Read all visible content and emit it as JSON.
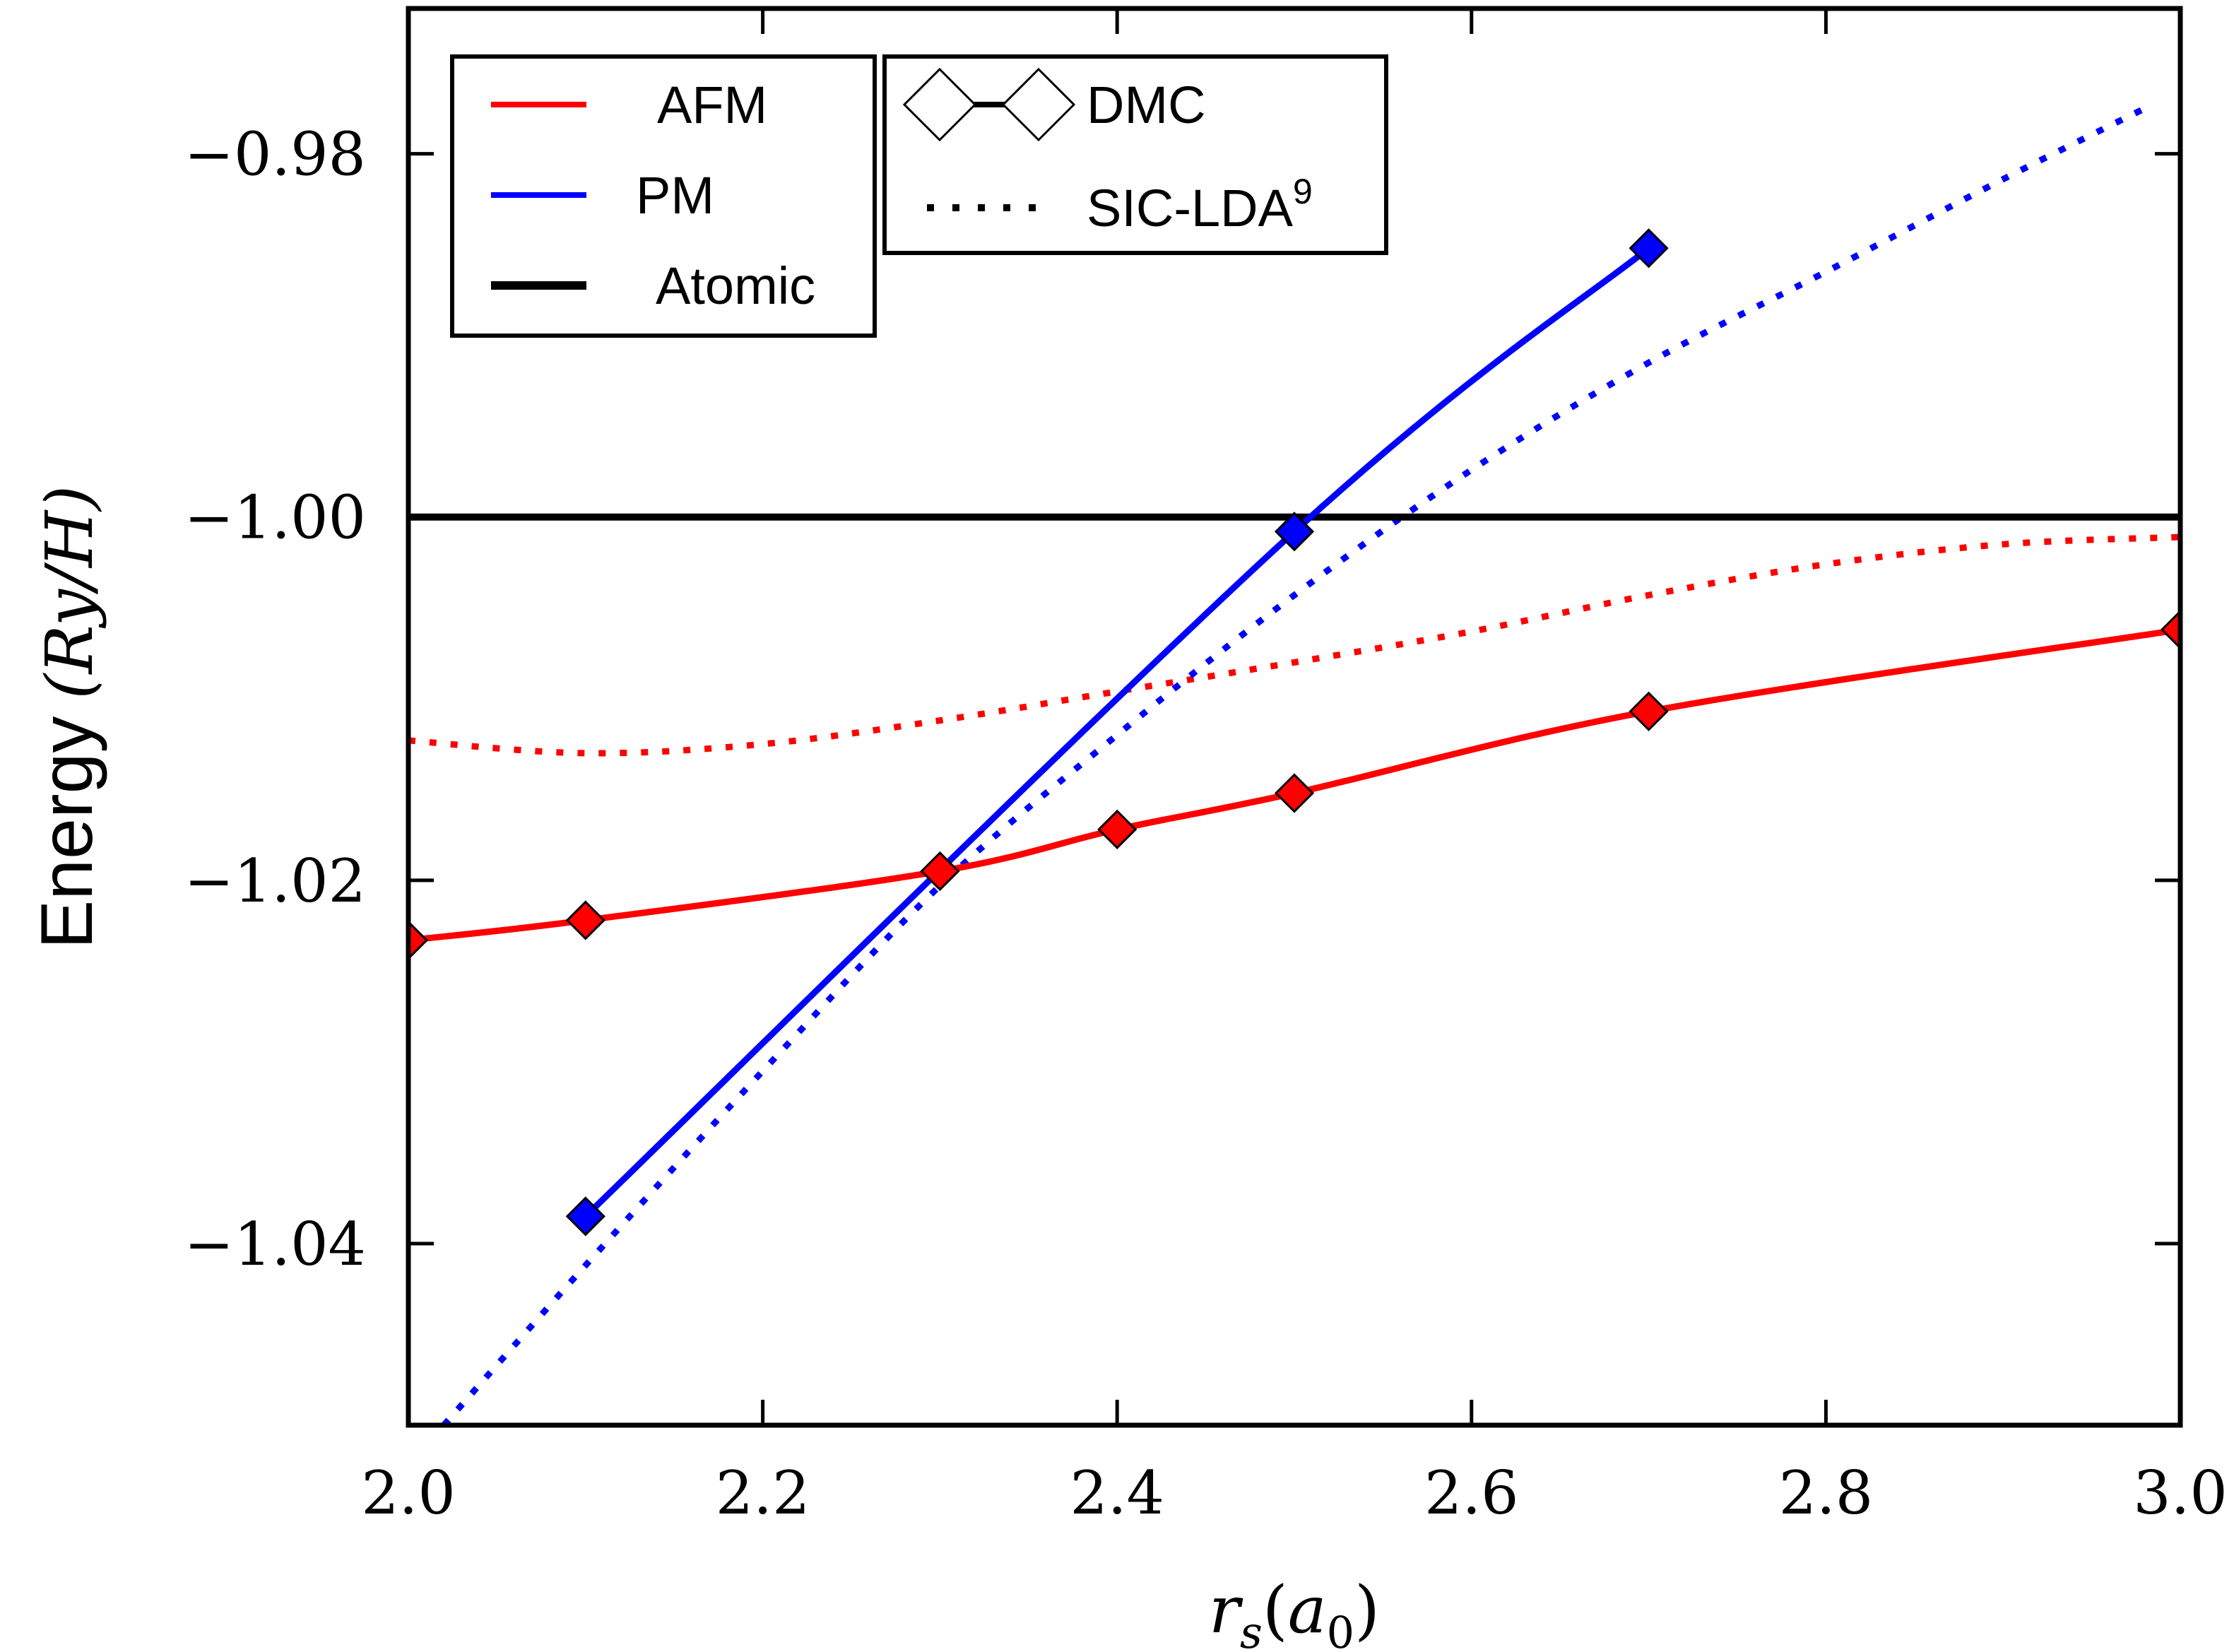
{
  "chart_data": {
    "type": "line",
    "title": "",
    "xlabel": "r_s(a_0)",
    "xlabel_display": {
      "base": "r",
      "sub": "s",
      "rest_open": "(",
      "arg": "a",
      "arg_sub": "0",
      "rest_close": ")"
    },
    "ylabel": "Energy (Ry/H)",
    "ylabel_display": {
      "word": "Energy",
      "unit": "(Ry/H)"
    },
    "xlim": [
      2.0,
      3.0
    ],
    "ylim": [
      -1.05,
      -0.972
    ],
    "x_ticks": [
      2.0,
      2.2,
      2.4,
      2.6,
      2.8,
      3.0
    ],
    "x_tick_labels": [
      "2.0",
      "2.2",
      "2.4",
      "2.6",
      "2.8",
      "3.0"
    ],
    "y_ticks": [
      -1.04,
      -1.02,
      -1.0,
      -0.98
    ],
    "y_tick_labels": [
      "−1.04",
      "−1.02",
      "−1.00",
      "−0.98"
    ],
    "grid": false,
    "series": [
      {
        "name": "AFM",
        "method": "DMC",
        "color": "#ff0000",
        "style": "solid",
        "markers": true,
        "x": [
          2.0,
          2.1,
          2.3,
          2.4,
          2.5,
          2.7,
          3.0
        ],
        "y": [
          -1.0233,
          -1.0222,
          -1.0195,
          -1.0172,
          -1.0152,
          -1.0107,
          -1.0062
        ]
      },
      {
        "name": "PM",
        "method": "DMC",
        "color": "#0000ff",
        "style": "solid",
        "markers": true,
        "x": [
          2.1,
          2.5,
          2.7
        ],
        "y": [
          -1.0385,
          -1.0008,
          -0.9852
        ]
      },
      {
        "name": "Atomic",
        "color": "#000000",
        "style": "solid",
        "markers": false,
        "x": [
          2.0,
          3.0
        ],
        "y": [
          -1.0,
          -1.0
        ]
      },
      {
        "name": "AFM",
        "method": "SIC-LDA",
        "color": "#ff0000",
        "style": "dotted",
        "markers": false,
        "x": [
          2.0,
          2.1,
          2.2,
          2.3,
          2.4,
          2.5,
          2.6,
          2.7,
          2.8,
          2.9,
          3.0
        ],
        "y": [
          -1.0123,
          -1.013,
          -1.0125,
          -1.0112,
          -1.0096,
          -1.008,
          -1.0063,
          -1.0043,
          -1.0026,
          -1.0015,
          -1.0011
        ]
      },
      {
        "name": "PM",
        "method": "SIC-LDA",
        "color": "#0000ff",
        "style": "dotted",
        "markers": false,
        "x": [
          2.02,
          2.1,
          2.2,
          2.3,
          2.4,
          2.5,
          2.6,
          2.7,
          2.8,
          2.9,
          2.98
        ],
        "y": [
          -1.05,
          -1.0412,
          -1.0305,
          -1.0203,
          -1.012,
          -1.0043,
          -0.9974,
          -0.9915,
          -0.9865,
          -0.9814,
          -0.9775
        ]
      }
    ],
    "legend_left": {
      "placement": "top-left",
      "entries": [
        {
          "label": "AFM",
          "color": "#ff0000"
        },
        {
          "label": "PM",
          "color": "#0000ff"
        },
        {
          "label": "Atomic",
          "color": "#000000"
        }
      ]
    },
    "legend_right": {
      "placement": "top-center",
      "entries": [
        {
          "label": "DMC",
          "symbol": "diamond-line"
        },
        {
          "label": "SIC-LDA",
          "superscript": "9",
          "symbol": "dotted"
        }
      ]
    }
  }
}
